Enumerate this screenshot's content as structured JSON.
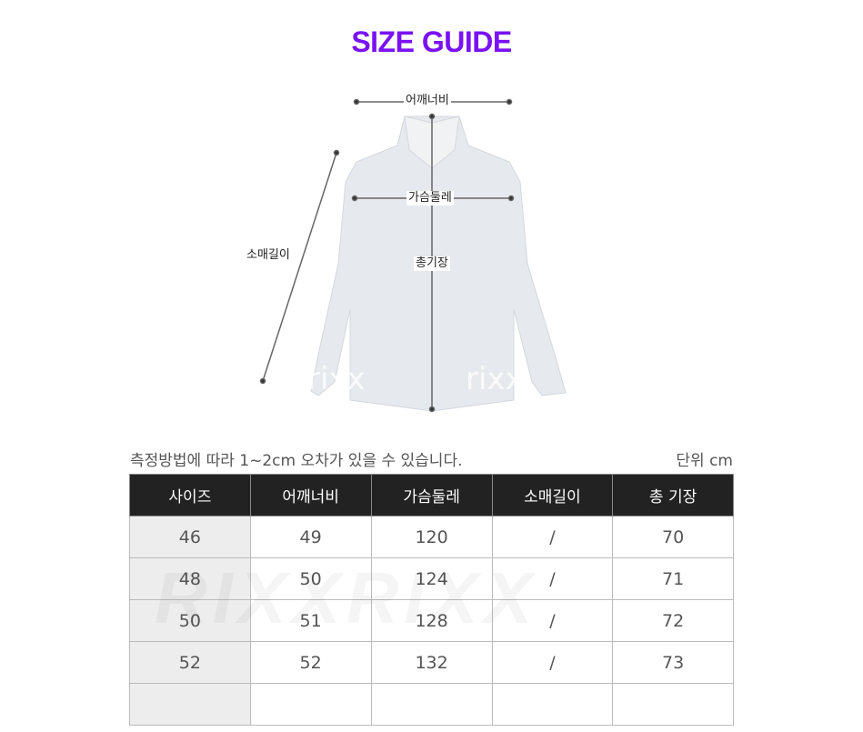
{
  "title": "SIZE GUIDE",
  "figure": {
    "shoulder": "어깨너비",
    "chest": "가슴둘레",
    "sleeve": "소매길이",
    "length": "총기장",
    "watermark": "rixx"
  },
  "note": "측정방법에 따라 1~2cm 오차가 있을 수 있습니다.",
  "unit": "단위 cm",
  "table": {
    "headers": [
      "사이즈",
      "어깨너비",
      "가슴둘레",
      "소매길이",
      "총 기장"
    ],
    "rows": [
      [
        "46",
        "49",
        "120",
        "/",
        "70"
      ],
      [
        "48",
        "50",
        "124",
        "/",
        "71"
      ],
      [
        "50",
        "51",
        "128",
        "/",
        "72"
      ],
      [
        "52",
        "52",
        "132",
        "/",
        "73"
      ],
      [
        "",
        "",
        "",
        "",
        ""
      ]
    ],
    "watermark": "RIXXRIXX"
  },
  "colors": {
    "title": "#7a12f5",
    "header_bg": "#222222",
    "size_col_bg": "#ededed"
  }
}
